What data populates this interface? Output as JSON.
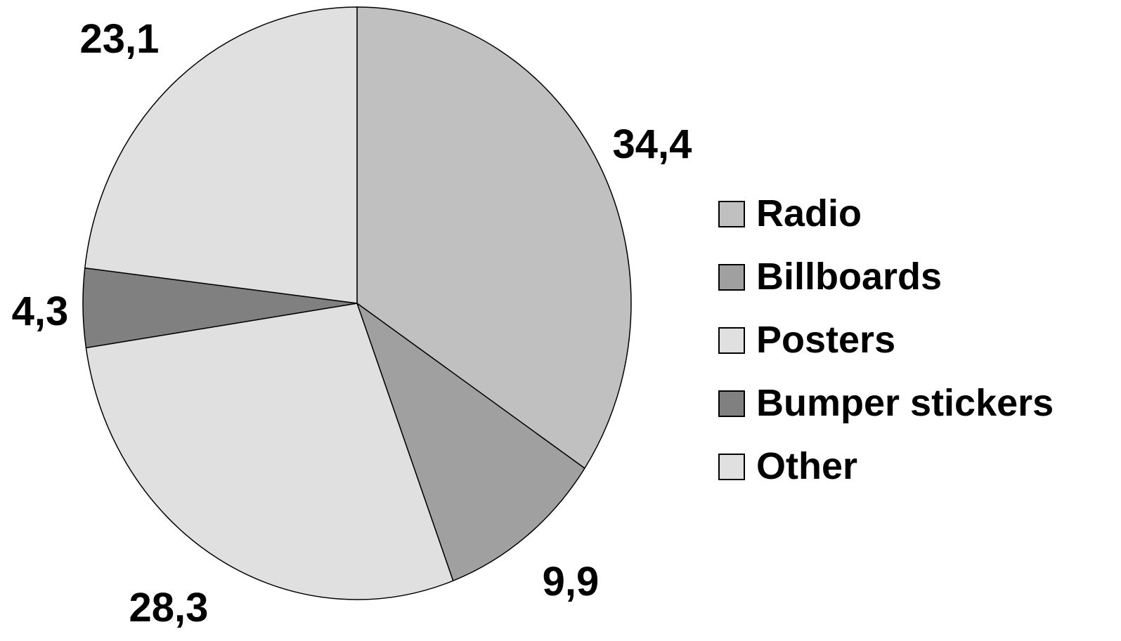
{
  "chart_data": {
    "type": "pie",
    "categories": [
      "Radio",
      "Billboards",
      "Posters",
      "Bumper stickers",
      "Other"
    ],
    "values": [
      34.4,
      9.9,
      28.3,
      4.3,
      23.1
    ],
    "value_labels": [
      "34,4",
      "9,9",
      "28,3",
      "4,3",
      "23,1"
    ],
    "colors": [
      "#c0c0c0",
      "#a0a0a0",
      "#e0e0e0",
      "#808080",
      "#e0e0e0"
    ],
    "start_angle_deg": 0,
    "direction": "clockwise",
    "legend_position": "right"
  }
}
